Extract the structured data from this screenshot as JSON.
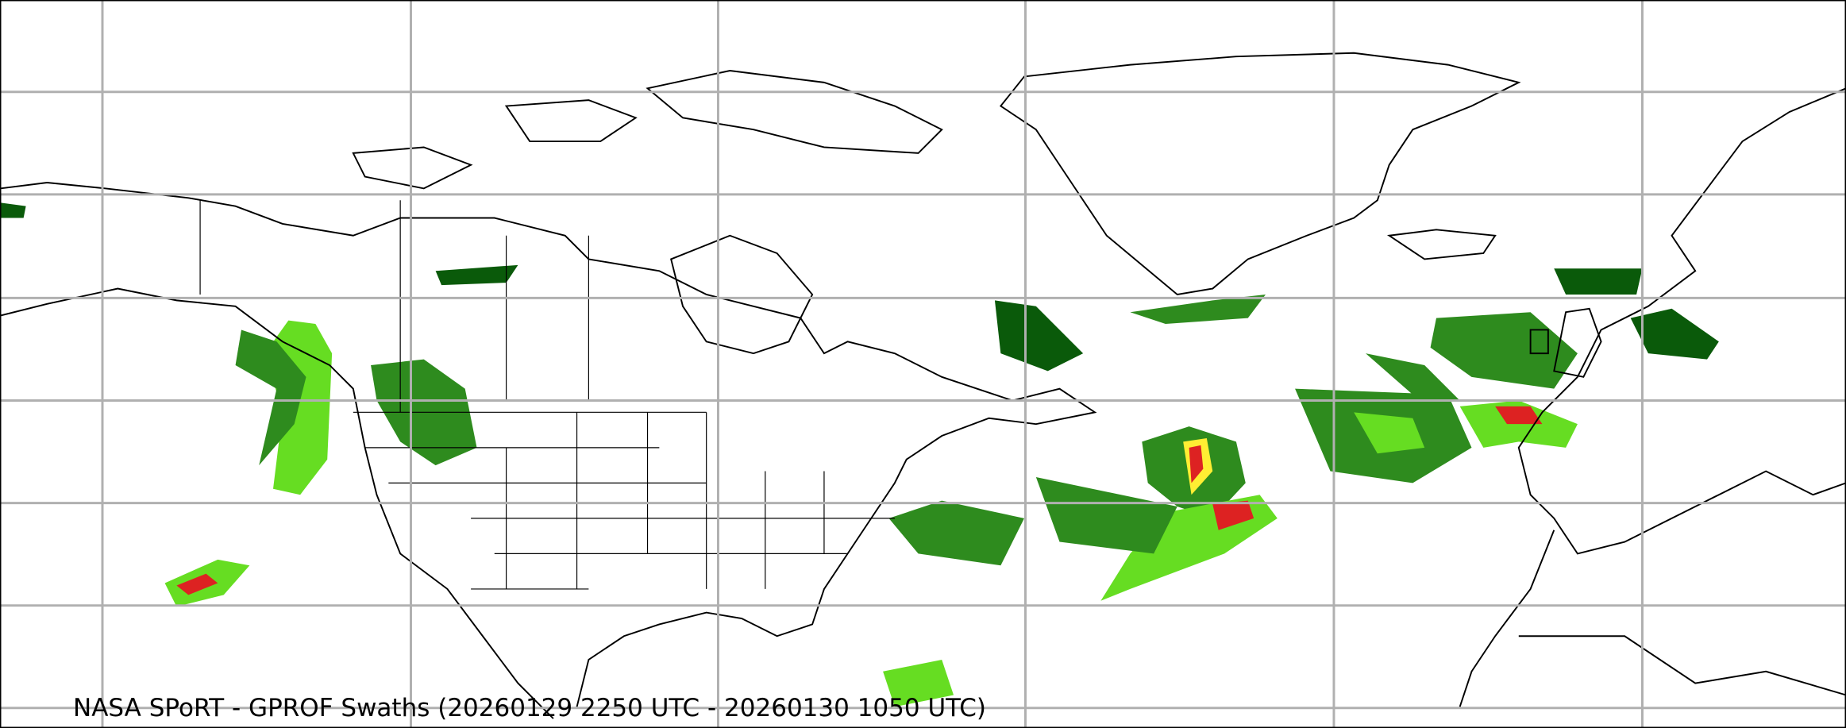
{
  "title": "NASA SPoRT - GPROF Swaths (20260129 2250 UTC - 20260130 1050 UTC)",
  "colors": {
    "light_precip": "#2e8b1e",
    "dark_precip": "#0a5a0a",
    "moderate_precip": "#66dd22",
    "heavy_precip": "#ffee33",
    "very_heavy_precip": "#dd2222",
    "gridline": "#b0b0b0",
    "coastline": "#000000"
  }
}
